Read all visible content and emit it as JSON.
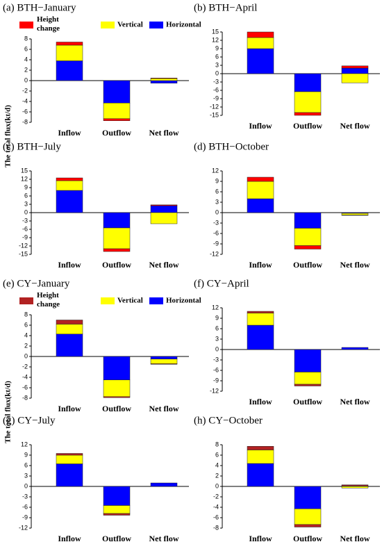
{
  "chart_data": [
    {
      "type": "bar",
      "title": "(a) BTH−January",
      "ylabel": "The total flux(kt/d)",
      "legend": true,
      "categories": [
        "Inflow",
        "Outflow",
        "Net flow"
      ],
      "ylim": [
        -8,
        8
      ],
      "yticks": [
        -8,
        -6,
        -4,
        -2,
        0,
        2,
        4,
        6,
        8
      ],
      "series": [
        {
          "name": "Horizontal",
          "color": "#0000ff",
          "values": [
            3.8,
            -4.3,
            -0.5
          ]
        },
        {
          "name": "Vertical",
          "color": "#ffff00",
          "values": [
            3.0,
            -3.0,
            0.4
          ]
        },
        {
          "name": "Height change",
          "color": "#ff0000",
          "values": [
            0.6,
            -0.4,
            0.1
          ]
        }
      ]
    },
    {
      "type": "bar",
      "title": "(b) BTH−April",
      "legend": false,
      "categories": [
        "Inflow",
        "Outflow",
        "Net flow"
      ],
      "ylim": [
        -15,
        15
      ],
      "yticks": [
        -15,
        -12,
        -9,
        -6,
        -3,
        0,
        3,
        6,
        9,
        12,
        15
      ],
      "series": [
        {
          "color": "#0000ff",
          "values": [
            9,
            -6.5,
            2
          ]
        },
        {
          "color": "#ffff00",
          "values": [
            4,
            -7.5,
            -3.3
          ]
        },
        {
          "color": "#ff0000",
          "values": [
            2,
            -1,
            0.8
          ]
        }
      ]
    },
    {
      "type": "bar",
      "title": "(c) BTH−July",
      "legend": false,
      "categories": [
        "Inflow",
        "Outflow",
        "Net flow"
      ],
      "ylim": [
        -15,
        15
      ],
      "yticks": [
        -15,
        -12,
        -9,
        -6,
        -3,
        0,
        3,
        6,
        9,
        12,
        15
      ],
      "series": [
        {
          "color": "#0000ff",
          "values": [
            8,
            -5.5,
            2.5
          ]
        },
        {
          "color": "#ffff00",
          "values": [
            3.5,
            -7.5,
            -4
          ]
        },
        {
          "color": "#ff0000",
          "values": [
            1,
            -1,
            0.3
          ]
        }
      ]
    },
    {
      "type": "bar",
      "title": "(d) BTH−October",
      "legend": false,
      "categories": [
        "Inflow",
        "Outflow",
        "Net flow"
      ],
      "ylim": [
        -12,
        12
      ],
      "yticks": [
        -12,
        -9,
        -6,
        -3,
        0,
        3,
        6,
        9,
        12
      ],
      "series": [
        {
          "color": "#0000ff",
          "values": [
            4,
            -4.5,
            -0.2
          ]
        },
        {
          "color": "#ffff00",
          "values": [
            5,
            -5,
            -0.5
          ]
        },
        {
          "color": "#ff0000",
          "values": [
            1.2,
            -1,
            -0.1
          ]
        }
      ]
    },
    {
      "type": "bar",
      "title": "(e) CY−January",
      "ylabel": "The total flux(kt/d)",
      "legend": true,
      "categories": [
        "Inflow",
        "Outflow",
        "Net flow"
      ],
      "ylim": [
        -8,
        8
      ],
      "yticks": [
        -8,
        -6,
        -4,
        -2,
        0,
        2,
        4,
        6,
        8
      ],
      "series": [
        {
          "name": "Horizontal",
          "color": "#0000ff",
          "values": [
            4.3,
            -4.5,
            -0.5
          ]
        },
        {
          "name": "Vertical",
          "color": "#ffff00",
          "values": [
            1.9,
            -3.2,
            -0.9
          ]
        },
        {
          "name": "Height change",
          "color": "#b22222",
          "values": [
            0.8,
            -0.2,
            -0.1
          ]
        }
      ]
    },
    {
      "type": "bar",
      "title": "(f) CY−April",
      "legend": false,
      "categories": [
        "Inflow",
        "Outflow",
        "Net flow"
      ],
      "ylim": [
        -12,
        12
      ],
      "yticks": [
        -12,
        -9,
        -6,
        -3,
        0,
        3,
        6,
        9,
        12
      ],
      "series": [
        {
          "color": "#0000ff",
          "values": [
            7,
            -6.5,
            0.6
          ]
        },
        {
          "color": "#ffff00",
          "values": [
            3.5,
            -3.5,
            0
          ]
        },
        {
          "color": "#b22222",
          "values": [
            0.5,
            -0.5,
            0
          ]
        }
      ]
    },
    {
      "type": "bar",
      "title": "(g) CY−July",
      "legend": false,
      "categories": [
        "Inflow",
        "Outflow",
        "Net flow"
      ],
      "ylim": [
        -12,
        12
      ],
      "yticks": [
        -12,
        -9,
        -6,
        -3,
        0,
        3,
        6,
        9,
        12
      ],
      "series": [
        {
          "color": "#0000ff",
          "values": [
            6.5,
            -5.5,
            1
          ]
        },
        {
          "color": "#ffff00",
          "values": [
            2.5,
            -2.3,
            0
          ]
        },
        {
          "color": "#b22222",
          "values": [
            0.5,
            -0.5,
            0
          ]
        }
      ]
    },
    {
      "type": "bar",
      "title": "(h) CY−October",
      "legend": false,
      "categories": [
        "Inflow",
        "Outflow",
        "Net flow"
      ],
      "ylim": [
        -8,
        8
      ],
      "yticks": [
        -8,
        -6,
        -4,
        -2,
        0,
        2,
        4,
        6,
        8
      ],
      "series": [
        {
          "color": "#0000ff",
          "values": [
            4.4,
            -4.3,
            0.1
          ]
        },
        {
          "color": "#ffff00",
          "values": [
            2.6,
            -3,
            -0.3
          ]
        },
        {
          "color": "#b22222",
          "values": [
            0.7,
            -0.5,
            0.2
          ]
        }
      ]
    }
  ]
}
